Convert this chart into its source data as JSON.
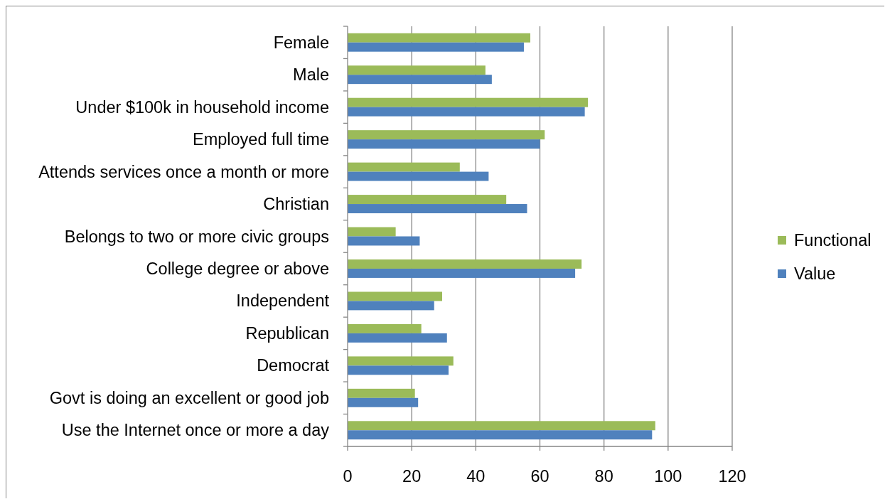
{
  "chart_data": {
    "type": "bar",
    "orientation": "horizontal",
    "categories": [
      "Female",
      "Male",
      "Under $100k in household income",
      "Employed full time",
      "Attends services once a month or more",
      "Christian",
      "Belongs to two or more civic groups",
      "College degree or above",
      "Independent",
      "Republican",
      "Democrat",
      "Govt is doing an excellent or good job",
      "Use the Internet once or more a day"
    ],
    "series": [
      {
        "name": "Functional",
        "color": "#9bbb59",
        "values": [
          57,
          43,
          75,
          61.5,
          35,
          49.5,
          15,
          73,
          29.5,
          23,
          33,
          21,
          96
        ]
      },
      {
        "name": "Value",
        "color": "#4f81bd",
        "values": [
          55,
          45,
          74,
          60,
          44,
          56,
          22.5,
          71,
          27,
          31,
          31.5,
          22,
          95
        ]
      }
    ],
    "xlim": [
      0,
      120
    ],
    "xticks": [
      0,
      20,
      40,
      60,
      80,
      100,
      120
    ],
    "grid": "x",
    "legend": "right"
  }
}
